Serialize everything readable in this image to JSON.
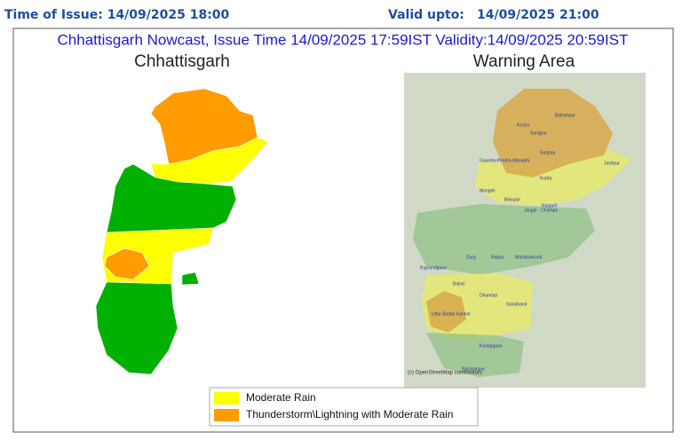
{
  "header": {
    "issue": "Time of Issue: 14/09/2025 18:00",
    "valid_label": "Valid upto:",
    "valid_time": "14/09/2025 21:00"
  },
  "title": "Chhattisgarh Nowcast, Issue Time 14/09/2025 17:59IST  Validity:14/09/2025 20:59IST",
  "left_map": {
    "title": "Chhattisgarh"
  },
  "right_map": {
    "title": "Warning Area",
    "labels": [
      "Koriya",
      "Surajpur",
      "Balrampur",
      "Surguja",
      "Gaurela-Pendra-Marwahi",
      "Jashpur",
      "Korba",
      "Mungeli",
      "Bilaspur",
      "Raigarh",
      "Janjgir - Champa",
      "Durg",
      "Raipur",
      "Mahasamund",
      "Rajnandgaon",
      "Balod",
      "Dhamtari",
      "Gariaband",
      "Uttar Bastar Kanker",
      "Kondagaon",
      "Narayanpur"
    ],
    "attribution": "(c) OpenStreetMap contributors"
  },
  "legend": [
    "Moderate Rain",
    "Thunderstorm\\Lightning with Moderate Rain"
  ]
}
